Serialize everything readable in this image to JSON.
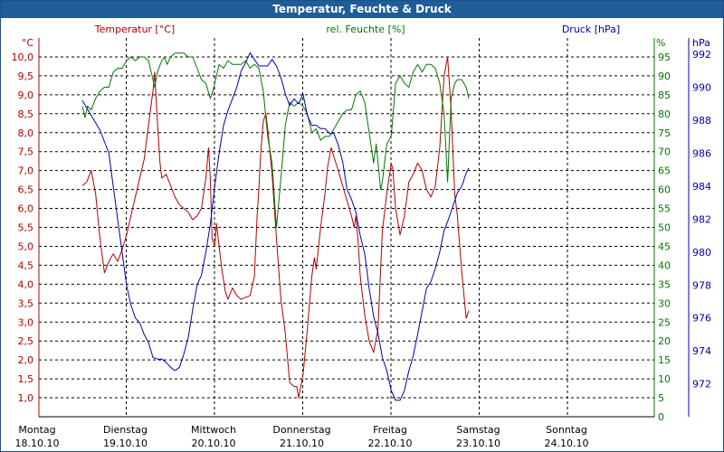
{
  "window": {
    "title": "Temperatur, Feuchte & Druck"
  },
  "colors": {
    "temperature": "#b40000",
    "humidity": "#007800",
    "pressure": "#0000b4",
    "grid": "#000000",
    "title_bg": "#1f5d98"
  },
  "chart_data": {
    "type": "line",
    "title": "Temperatur, Feuchte & Druck",
    "x_start": "Montag 18.10.10 12:00",
    "x_labels": [
      {
        "day": "Montag",
        "date": "18.10.10"
      },
      {
        "day": "Dienstag",
        "date": "19.10.10"
      },
      {
        "day": "Mittwoch",
        "date": "20.10.10"
      },
      {
        "day": "Donnerstag",
        "date": "21.10.10"
      },
      {
        "day": "Freitag",
        "date": "22.10.10"
      },
      {
        "day": "Samstag",
        "date": "23.10.10"
      },
      {
        "day": "Sonntag",
        "date": "24.10.10"
      }
    ],
    "axes": {
      "temperature": {
        "label": "Temperatur [°C]",
        "unit": "°C",
        "min": 0.5,
        "max": 10.5,
        "ticks": [
          "10,0",
          "9,5",
          "9,0",
          "8,5",
          "8,0",
          "7,5",
          "7,0",
          "6,5",
          "6,0",
          "5,5",
          "5,0",
          "4,5",
          "4,0",
          "3,5",
          "3,0",
          "2,5",
          "2,0",
          "1,5",
          "1,0"
        ]
      },
      "humidity": {
        "label": "rel. Feuchte [%]",
        "unit": "%",
        "min": 0,
        "max": 100,
        "ticks": [
          "95",
          "90",
          "85",
          "80",
          "75",
          "70",
          "65",
          "60",
          "55",
          "50",
          "45",
          "40",
          "35",
          "30",
          "25",
          "20",
          "15",
          "10",
          "5",
          "0"
        ]
      },
      "pressure": {
        "label": "Druck [hPa]",
        "unit": "hPa",
        "min": 970,
        "max": 993,
        "ticks": [
          "992",
          "990",
          "988",
          "986",
          "984",
          "982",
          "980",
          "978",
          "976",
          "974",
          "972"
        ]
      }
    },
    "series": [
      {
        "name": "Temperatur",
        "axis": "temperature",
        "color": "#b40000",
        "points": [
          [
            0.0,
            6.6
          ],
          [
            0.05,
            6.7
          ],
          [
            0.1,
            7.0
          ],
          [
            0.15,
            6.4
          ],
          [
            0.2,
            5.2
          ],
          [
            0.25,
            4.3
          ],
          [
            0.3,
            4.6
          ],
          [
            0.35,
            4.8
          ],
          [
            0.4,
            4.6
          ],
          [
            0.45,
            4.9
          ],
          [
            0.5,
            5.3
          ],
          [
            0.55,
            5.8
          ],
          [
            0.6,
            6.3
          ],
          [
            0.65,
            6.8
          ],
          [
            0.7,
            7.3
          ],
          [
            0.75,
            8.2
          ],
          [
            0.8,
            9.1
          ],
          [
            0.82,
            9.6
          ],
          [
            0.85,
            8.3
          ],
          [
            0.88,
            7.2
          ],
          [
            0.9,
            6.8
          ],
          [
            0.95,
            6.9
          ],
          [
            1.0,
            6.6
          ],
          [
            1.05,
            6.3
          ],
          [
            1.1,
            6.1
          ],
          [
            1.2,
            5.9
          ],
          [
            1.25,
            5.7
          ],
          [
            1.3,
            5.8
          ],
          [
            1.35,
            6.0
          ],
          [
            1.4,
            6.8
          ],
          [
            1.43,
            7.6
          ],
          [
            1.45,
            6.8
          ],
          [
            1.47,
            5.2
          ],
          [
            1.5,
            5.0
          ],
          [
            1.52,
            5.6
          ],
          [
            1.55,
            5.0
          ],
          [
            1.58,
            4.4
          ],
          [
            1.62,
            3.8
          ],
          [
            1.65,
            3.6
          ],
          [
            1.7,
            3.9
          ],
          [
            1.75,
            3.7
          ],
          [
            1.8,
            3.6
          ],
          [
            1.9,
            3.7
          ],
          [
            1.95,
            4.2
          ],
          [
            1.98,
            5.8
          ],
          [
            2.0,
            6.5
          ],
          [
            2.02,
            7.4
          ],
          [
            2.05,
            8.3
          ],
          [
            2.08,
            8.5
          ],
          [
            2.1,
            8.1
          ],
          [
            2.15,
            6.9
          ],
          [
            2.2,
            5.2
          ],
          [
            2.25,
            3.6
          ],
          [
            2.3,
            2.7
          ],
          [
            2.35,
            1.4
          ],
          [
            2.4,
            1.3
          ],
          [
            2.43,
            1.3
          ],
          [
            2.45,
            1.0
          ],
          [
            2.5,
            1.6
          ],
          [
            2.55,
            2.8
          ],
          [
            2.6,
            4.2
          ],
          [
            2.63,
            4.7
          ],
          [
            2.65,
            4.4
          ],
          [
            2.7,
            5.5
          ],
          [
            2.75,
            6.4
          ],
          [
            2.78,
            7.1
          ],
          [
            2.82,
            7.6
          ],
          [
            2.86,
            7.3
          ],
          [
            2.9,
            7.0
          ],
          [
            2.95,
            6.6
          ],
          [
            3.0,
            6.2
          ],
          [
            3.05,
            5.8
          ],
          [
            3.08,
            5.5
          ],
          [
            3.1,
            5.8
          ],
          [
            3.12,
            5.3
          ],
          [
            3.15,
            4.2
          ],
          [
            3.2,
            3.2
          ],
          [
            3.25,
            2.5
          ],
          [
            3.3,
            2.2
          ],
          [
            3.35,
            2.8
          ],
          [
            3.4,
            5.4
          ],
          [
            3.45,
            6.4
          ],
          [
            3.5,
            7.2
          ],
          [
            3.52,
            7.0
          ],
          [
            3.55,
            6.0
          ],
          [
            3.6,
            5.3
          ],
          [
            3.65,
            5.8
          ],
          [
            3.7,
            6.7
          ],
          [
            3.75,
            6.9
          ],
          [
            3.8,
            7.2
          ],
          [
            3.85,
            7.0
          ],
          [
            3.9,
            6.5
          ],
          [
            3.95,
            6.3
          ],
          [
            4.0,
            6.6
          ],
          [
            4.05,
            7.6
          ],
          [
            4.1,
            9.5
          ],
          [
            4.14,
            10.0
          ],
          [
            4.18,
            8.6
          ],
          [
            4.22,
            6.4
          ],
          [
            4.25,
            5.8
          ],
          [
            4.3,
            4.3
          ],
          [
            4.35,
            3.1
          ],
          [
            4.38,
            3.3
          ]
        ]
      },
      {
        "name": "rel. Feuchte",
        "axis": "humidity",
        "color": "#007800",
        "points": [
          [
            0.0,
            82
          ],
          [
            0.03,
            79
          ],
          [
            0.06,
            82
          ],
          [
            0.1,
            81
          ],
          [
            0.15,
            84
          ],
          [
            0.2,
            86
          ],
          [
            0.25,
            87
          ],
          [
            0.3,
            87
          ],
          [
            0.35,
            91
          ],
          [
            0.4,
            92
          ],
          [
            0.45,
            92
          ],
          [
            0.5,
            94
          ],
          [
            0.55,
            95
          ],
          [
            0.6,
            94
          ],
          [
            0.65,
            95
          ],
          [
            0.7,
            95
          ],
          [
            0.75,
            94
          ],
          [
            0.8,
            89
          ],
          [
            0.82,
            87
          ],
          [
            0.85,
            91
          ],
          [
            0.9,
            94
          ],
          [
            0.93,
            95
          ],
          [
            0.96,
            93
          ],
          [
            1.0,
            95
          ],
          [
            1.05,
            96
          ],
          [
            1.1,
            96
          ],
          [
            1.15,
            96
          ],
          [
            1.2,
            95
          ],
          [
            1.25,
            95
          ],
          [
            1.3,
            92
          ],
          [
            1.35,
            89
          ],
          [
            1.4,
            88
          ],
          [
            1.45,
            84
          ],
          [
            1.48,
            86
          ],
          [
            1.5,
            88
          ],
          [
            1.55,
            93
          ],
          [
            1.6,
            92
          ],
          [
            1.65,
            94
          ],
          [
            1.7,
            93
          ],
          [
            1.75,
            93
          ],
          [
            1.8,
            93
          ],
          [
            1.85,
            94
          ],
          [
            1.9,
            92
          ],
          [
            1.95,
            93
          ],
          [
            2.0,
            92
          ],
          [
            2.05,
            86
          ],
          [
            2.1,
            74
          ],
          [
            2.15,
            67
          ],
          [
            2.2,
            50
          ],
          [
            2.25,
            63
          ],
          [
            2.3,
            77
          ],
          [
            2.35,
            83
          ],
          [
            2.4,
            82
          ],
          [
            2.45,
            83
          ],
          [
            2.5,
            82
          ],
          [
            2.55,
            80
          ],
          [
            2.6,
            75
          ],
          [
            2.65,
            76
          ],
          [
            2.7,
            73
          ],
          [
            2.75,
            74
          ],
          [
            2.8,
            74
          ],
          [
            2.85,
            76
          ],
          [
            2.9,
            78
          ],
          [
            2.95,
            80
          ],
          [
            3.0,
            81
          ],
          [
            3.05,
            81
          ],
          [
            3.1,
            85
          ],
          [
            3.15,
            86
          ],
          [
            3.2,
            83
          ],
          [
            3.25,
            75
          ],
          [
            3.3,
            67
          ],
          [
            3.33,
            72
          ],
          [
            3.38,
            60
          ],
          [
            3.4,
            62
          ],
          [
            3.45,
            72
          ],
          [
            3.5,
            74
          ],
          [
            3.55,
            88
          ],
          [
            3.6,
            90
          ],
          [
            3.65,
            88
          ],
          [
            3.7,
            87
          ],
          [
            3.75,
            91
          ],
          [
            3.8,
            93
          ],
          [
            3.85,
            91
          ],
          [
            3.9,
            93
          ],
          [
            3.95,
            93
          ],
          [
            4.0,
            92
          ],
          [
            4.05,
            88
          ],
          [
            4.1,
            80
          ],
          [
            4.14,
            62
          ],
          [
            4.18,
            84
          ],
          [
            4.22,
            88
          ],
          [
            4.25,
            89
          ],
          [
            4.3,
            89
          ],
          [
            4.35,
            87
          ],
          [
            4.38,
            84
          ]
        ]
      },
      {
        "name": "Druck",
        "axis": "pressure",
        "color": "#0000b4",
        "points": [
          [
            0.0,
            989.2
          ],
          [
            0.1,
            988.3
          ],
          [
            0.2,
            987.4
          ],
          [
            0.3,
            986.0
          ],
          [
            0.35,
            984.0
          ],
          [
            0.4,
            982.0
          ],
          [
            0.45,
            980.0
          ],
          [
            0.5,
            978.0
          ],
          [
            0.55,
            976.8
          ],
          [
            0.6,
            976.0
          ],
          [
            0.65,
            975.7
          ],
          [
            0.7,
            975.0
          ],
          [
            0.75,
            974.5
          ],
          [
            0.8,
            973.6
          ],
          [
            0.85,
            973.5
          ],
          [
            0.9,
            973.5
          ],
          [
            0.95,
            973.3
          ],
          [
            1.0,
            973.0
          ],
          [
            1.05,
            972.8
          ],
          [
            1.1,
            973.0
          ],
          [
            1.15,
            973.8
          ],
          [
            1.2,
            974.8
          ],
          [
            1.25,
            976.5
          ],
          [
            1.3,
            978.0
          ],
          [
            1.35,
            978.6
          ],
          [
            1.4,
            980.0
          ],
          [
            1.45,
            981.7
          ],
          [
            1.5,
            984.0
          ],
          [
            1.55,
            986.0
          ],
          [
            1.6,
            987.7
          ],
          [
            1.65,
            988.6
          ],
          [
            1.7,
            989.3
          ],
          [
            1.75,
            990.0
          ],
          [
            1.8,
            991.0
          ],
          [
            1.85,
            991.5
          ],
          [
            1.9,
            992.1
          ],
          [
            1.95,
            991.7
          ],
          [
            2.0,
            991.3
          ],
          [
            2.05,
            991.3
          ],
          [
            2.1,
            991.3
          ],
          [
            2.15,
            991.7
          ],
          [
            2.2,
            991.3
          ],
          [
            2.25,
            990.6
          ],
          [
            2.3,
            989.6
          ],
          [
            2.35,
            988.9
          ],
          [
            2.4,
            989.3
          ],
          [
            2.45,
            989.0
          ],
          [
            2.5,
            989.6
          ],
          [
            2.55,
            988.3
          ],
          [
            2.6,
            987.7
          ],
          [
            2.65,
            987.7
          ],
          [
            2.7,
            987.5
          ],
          [
            2.75,
            987.5
          ],
          [
            2.8,
            987.2
          ],
          [
            2.85,
            987.2
          ],
          [
            2.9,
            986.5
          ],
          [
            2.95,
            985.5
          ],
          [
            3.0,
            983.8
          ],
          [
            3.05,
            983.2
          ],
          [
            3.1,
            982.4
          ],
          [
            3.15,
            981.0
          ],
          [
            3.2,
            979.9
          ],
          [
            3.25,
            977.8
          ],
          [
            3.3,
            976.1
          ],
          [
            3.35,
            975.1
          ],
          [
            3.4,
            973.6
          ],
          [
            3.45,
            972.8
          ],
          [
            3.5,
            971.6
          ],
          [
            3.55,
            971.0
          ],
          [
            3.6,
            971.0
          ],
          [
            3.65,
            971.6
          ],
          [
            3.7,
            972.8
          ],
          [
            3.75,
            973.7
          ],
          [
            3.8,
            975.0
          ],
          [
            3.85,
            976.4
          ],
          [
            3.9,
            977.8
          ],
          [
            3.95,
            978.2
          ],
          [
            4.0,
            979.0
          ],
          [
            4.05,
            980.0
          ],
          [
            4.1,
            981.3
          ],
          [
            4.15,
            982.0
          ],
          [
            4.2,
            982.8
          ],
          [
            4.25,
            983.6
          ],
          [
            4.3,
            984.0
          ],
          [
            4.35,
            984.8
          ],
          [
            4.38,
            985.1
          ]
        ]
      }
    ]
  }
}
